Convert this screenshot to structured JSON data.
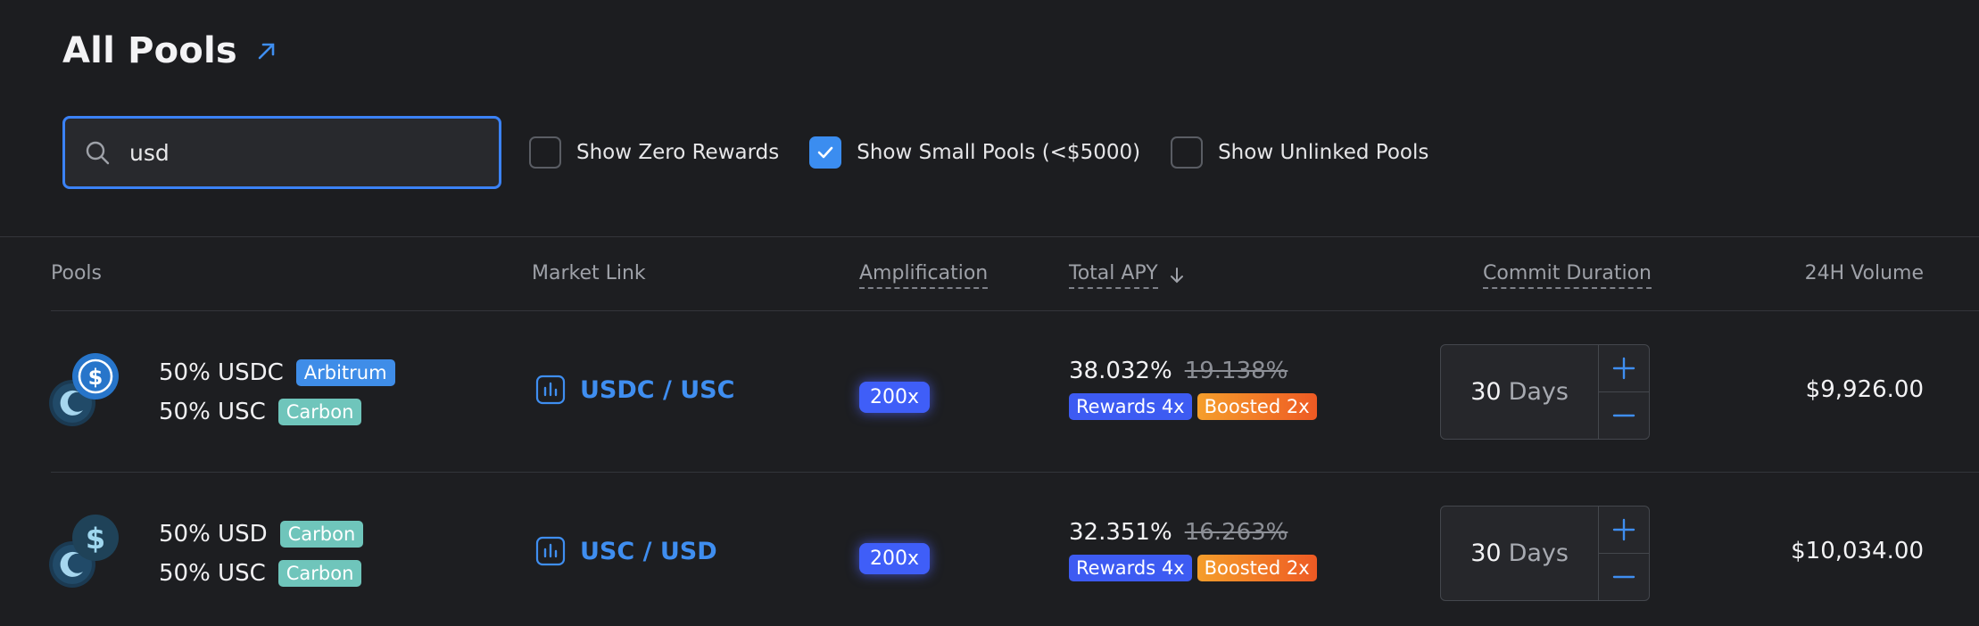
{
  "header": {
    "title": "All Pools"
  },
  "search": {
    "value": "usd",
    "placeholder": ""
  },
  "filters": [
    {
      "label": "Show Zero Rewards",
      "checked": false
    },
    {
      "label": "Show Small Pools (<$5000)",
      "checked": true
    },
    {
      "label": "Show Unlinked Pools",
      "checked": false
    }
  ],
  "columns": {
    "pools": "Pools",
    "market_link": "Market Link",
    "amplification": "Amplification",
    "total_apy": "Total APY",
    "commit_duration": "Commit Duration",
    "volume": "24H Volume"
  },
  "rows": [
    {
      "token1": "50% USDC",
      "chain1": "Arbitrum",
      "token2": "50% USC",
      "chain2": "Carbon",
      "market": "USDC / USC",
      "amplification": "200x",
      "apy": "38.032%",
      "apy_old": "19.138%",
      "rewards": "Rewards 4x",
      "boosted": "Boosted 2x",
      "duration_value": "30",
      "duration_unit": "Days",
      "volume": "$9,926.00"
    },
    {
      "token1": "50% USD",
      "chain1": "Carbon",
      "token2": "50% USC",
      "chain2": "Carbon",
      "market": "USC / USD",
      "amplification": "200x",
      "apy": "32.351%",
      "apy_old": "16.263%",
      "rewards": "Rewards 4x",
      "boosted": "Boosted 2x",
      "duration_value": "30",
      "duration_unit": "Days",
      "volume": "$10,034.00"
    }
  ],
  "colors": {
    "accent": "#3b82f6",
    "carbon": "#6fc5bb",
    "arbitrum": "#3f8de8",
    "background": "#1d1e21"
  },
  "icons": [
    "external-link-icon",
    "search-icon",
    "check-icon",
    "sort-down-icon",
    "chart-icon",
    "plus-icon",
    "minus-icon",
    "usdc-icon",
    "usd-icon",
    "carbon-icon"
  ]
}
